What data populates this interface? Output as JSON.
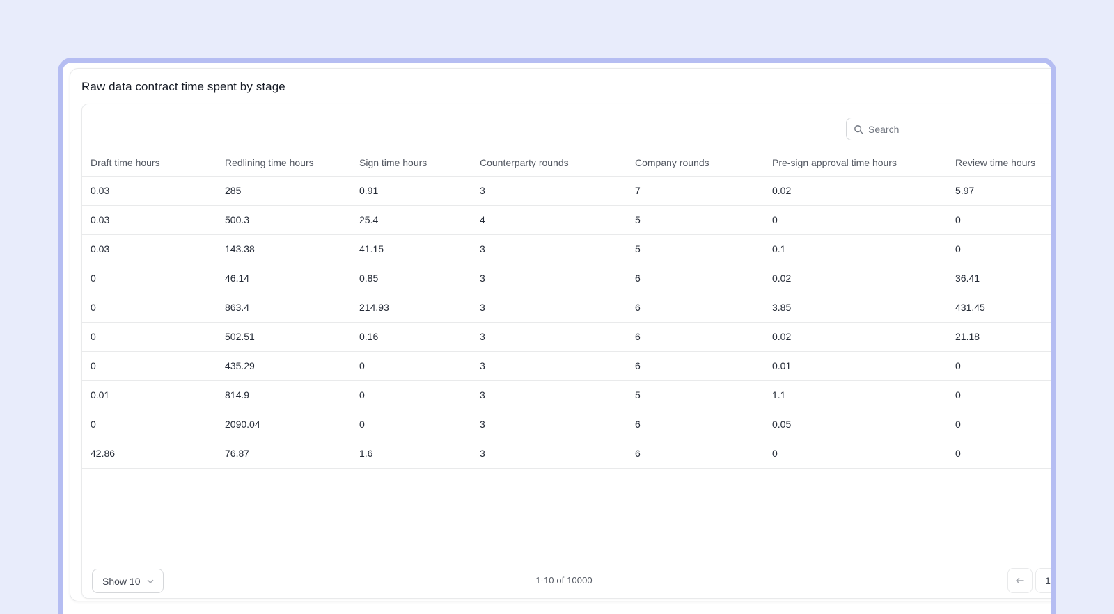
{
  "card": {
    "title": "Raw data contract time spent by stage"
  },
  "search": {
    "placeholder": "Search",
    "value": ""
  },
  "table": {
    "columns": [
      "Draft time hours",
      "Redlining time hours",
      "Sign time hours",
      "Counterparty rounds",
      "Company rounds",
      "Pre-sign approval time hours",
      "Review time hours"
    ],
    "rows": [
      [
        "0.03",
        "285",
        "0.91",
        "3",
        "7",
        "0.02",
        "5.97"
      ],
      [
        "0.03",
        "500.3",
        "25.4",
        "4",
        "5",
        "0",
        "0"
      ],
      [
        "0.03",
        "143.38",
        "41.15",
        "3",
        "5",
        "0.1",
        "0"
      ],
      [
        "0",
        "46.14",
        "0.85",
        "3",
        "6",
        "0.02",
        "36.41"
      ],
      [
        "0",
        "863.4",
        "214.93",
        "3",
        "6",
        "3.85",
        "431.45"
      ],
      [
        "0",
        "502.51",
        "0.16",
        "3",
        "6",
        "0.02",
        "21.18"
      ],
      [
        "0",
        "435.29",
        "0",
        "3",
        "6",
        "0.01",
        "0"
      ],
      [
        "0.01",
        "814.9",
        "0",
        "3",
        "5",
        "1.1",
        "0"
      ],
      [
        "0",
        "2090.04",
        "0",
        "3",
        "6",
        "0.05",
        "0"
      ],
      [
        "42.86",
        "76.87",
        "1.6",
        "3",
        "6",
        "0",
        "0"
      ]
    ]
  },
  "pagination": {
    "page_size_label": "Show 10",
    "range_label": "1-10 of 10000",
    "current_page": "1"
  },
  "colors": {
    "background": "#E8ECFB",
    "accent_border": "#B5BDF2",
    "card_border": "#E9EAEB",
    "divider": "#E9EAEB",
    "title_text": "#181D27",
    "header_text": "#535862",
    "cell_text": "#252B37",
    "muted_text": "#717680"
  }
}
